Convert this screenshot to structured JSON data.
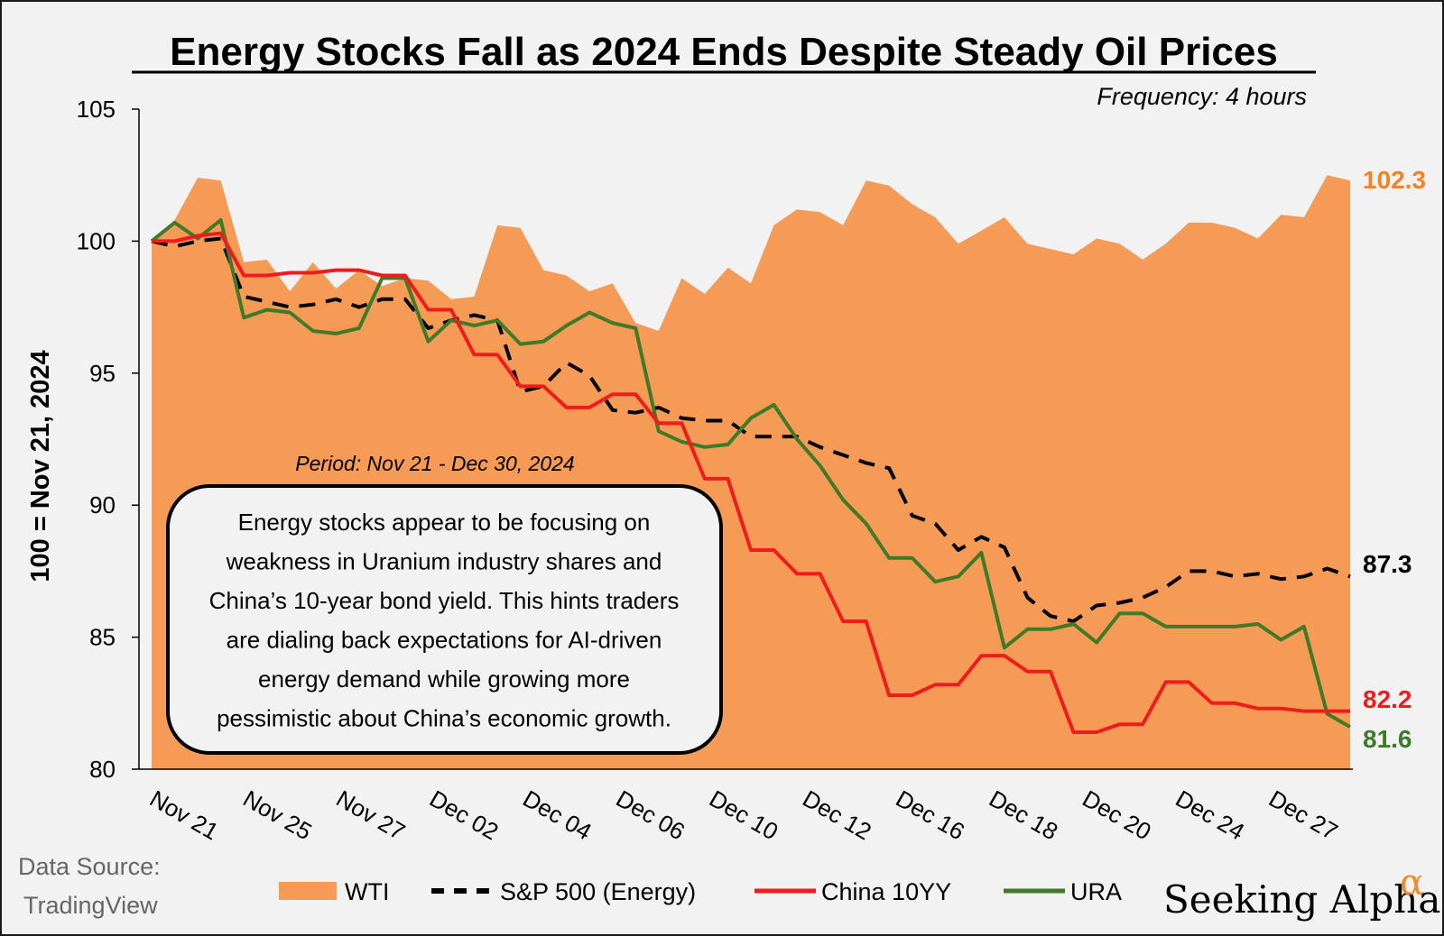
{
  "title": "Energy Stocks Fall as 2024 Ends Despite Steady Oil Prices",
  "subtitle": "Frequency: 4 hours",
  "period_note": "Period: Nov 21 - Dec 30, 2024",
  "callout_lines": [
    "Energy stocks appear to be focusing on",
    "weakness in Uranium industry shares and",
    "China’s 10-year bond yield. This hints traders",
    "are dialing back expectations for AI-driven",
    "energy demand while growing more",
    "pessimistic about China’s economic growth."
  ],
  "source": {
    "line1": "Data Source:",
    "line2": "TradingView"
  },
  "brand": {
    "name": "Seeking Alpha",
    "symbol": "α"
  },
  "colors": {
    "wti": "#f59b55",
    "sp500": "#000000",
    "china": "#ee1c1c",
    "ura": "#3f7a28",
    "wti_label": "#f58220",
    "ura_label": "#3f7a28"
  },
  "chart_data": {
    "type": "area",
    "ylabel": "100 = Nov 21, 2024",
    "ylim": [
      80,
      105
    ],
    "yticks": [
      80,
      85,
      90,
      95,
      100,
      105
    ],
    "xticks": [
      "Nov 21",
      "Nov 25",
      "Nov 27",
      "Dec 02",
      "Dec 04",
      "Dec 06",
      "Dec 10",
      "Dec 12",
      "Dec 16",
      "Dec 18",
      "Dec 20",
      "Dec 24",
      "Dec 27"
    ],
    "x_range": [
      0,
      52
    ],
    "legend_position": "bottom",
    "series": [
      {
        "name": "WTI",
        "style": "area",
        "end_label": "102.3",
        "points": [
          [
            0,
            100
          ],
          [
            1,
            100.8
          ],
          [
            2,
            102.4
          ],
          [
            3,
            102.3
          ],
          [
            4,
            99.2
          ],
          [
            5,
            99.3
          ],
          [
            6,
            98.1
          ],
          [
            7,
            99.2
          ],
          [
            8,
            98.2
          ],
          [
            9,
            98.9
          ],
          [
            10,
            98.3
          ],
          [
            11,
            98.6
          ],
          [
            12,
            98.5
          ],
          [
            13,
            97.8
          ],
          [
            14,
            97.9
          ],
          [
            15,
            100.6
          ],
          [
            16,
            100.5
          ],
          [
            17,
            98.9
          ],
          [
            18,
            98.7
          ],
          [
            19,
            98.1
          ],
          [
            20,
            98.4
          ],
          [
            21,
            96.9
          ],
          [
            22,
            96.6
          ],
          [
            23,
            98.6
          ],
          [
            24,
            98.0
          ],
          [
            25,
            99.0
          ],
          [
            26,
            98.4
          ],
          [
            27,
            100.6
          ],
          [
            28,
            101.2
          ],
          [
            29,
            101.1
          ],
          [
            30,
            100.6
          ],
          [
            31,
            102.3
          ],
          [
            32,
            102.1
          ],
          [
            33,
            101.4
          ],
          [
            34,
            100.9
          ],
          [
            35,
            99.9
          ],
          [
            36,
            100.4
          ],
          [
            37,
            100.9
          ],
          [
            38,
            99.9
          ],
          [
            39,
            99.7
          ],
          [
            40,
            99.5
          ],
          [
            41,
            100.1
          ],
          [
            42,
            99.9
          ],
          [
            43,
            99.3
          ],
          [
            44,
            99.9
          ],
          [
            45,
            100.7
          ],
          [
            46,
            100.7
          ],
          [
            47,
            100.5
          ],
          [
            48,
            100.1
          ],
          [
            49,
            101.0
          ],
          [
            50,
            100.9
          ],
          [
            51,
            102.5
          ],
          [
            52,
            102.3
          ]
        ]
      },
      {
        "name": "S&P 500 (Energy)",
        "style": "dashed",
        "end_label": "87.3",
        "points": [
          [
            0,
            100
          ],
          [
            1,
            99.8
          ],
          [
            2,
            100.0
          ],
          [
            3,
            100.1
          ],
          [
            4,
            97.9
          ],
          [
            5,
            97.7
          ],
          [
            6,
            97.5
          ],
          [
            7,
            97.6
          ],
          [
            8,
            97.8
          ],
          [
            9,
            97.5
          ],
          [
            10,
            97.8
          ],
          [
            11,
            97.8
          ],
          [
            12,
            96.7
          ],
          [
            13,
            97.0
          ],
          [
            14,
            97.2
          ],
          [
            15,
            97.0
          ],
          [
            16,
            94.3
          ],
          [
            17,
            94.5
          ],
          [
            18,
            95.4
          ],
          [
            19,
            94.9
          ],
          [
            20,
            93.6
          ],
          [
            21,
            93.5
          ],
          [
            22,
            93.7
          ],
          [
            23,
            93.3
          ],
          [
            24,
            93.2
          ],
          [
            25,
            93.2
          ],
          [
            26,
            92.6
          ],
          [
            27,
            92.6
          ],
          [
            28,
            92.6
          ],
          [
            29,
            92.2
          ],
          [
            30,
            91.9
          ],
          [
            31,
            91.6
          ],
          [
            32,
            91.4
          ],
          [
            33,
            89.6
          ],
          [
            34,
            89.3
          ],
          [
            35,
            88.3
          ],
          [
            36,
            88.8
          ],
          [
            37,
            88.4
          ],
          [
            38,
            86.5
          ],
          [
            39,
            85.8
          ],
          [
            40,
            85.6
          ],
          [
            41,
            86.2
          ],
          [
            42,
            86.3
          ],
          [
            43,
            86.5
          ],
          [
            44,
            86.9
          ],
          [
            45,
            87.5
          ],
          [
            46,
            87.5
          ],
          [
            47,
            87.3
          ],
          [
            48,
            87.4
          ],
          [
            49,
            87.2
          ],
          [
            50,
            87.3
          ],
          [
            51,
            87.6
          ],
          [
            52,
            87.3
          ]
        ]
      },
      {
        "name": "China 10YY",
        "style": "solid",
        "end_label": "82.2",
        "points": [
          [
            0,
            100
          ],
          [
            1,
            100
          ],
          [
            2,
            100.2
          ],
          [
            3,
            100.3
          ],
          [
            4,
            98.7
          ],
          [
            5,
            98.7
          ],
          [
            6,
            98.8
          ],
          [
            7,
            98.8
          ],
          [
            8,
            98.9
          ],
          [
            9,
            98.9
          ],
          [
            10,
            98.7
          ],
          [
            11,
            98.7
          ],
          [
            12,
            97.4
          ],
          [
            13,
            97.4
          ],
          [
            14,
            95.7
          ],
          [
            15,
            95.7
          ],
          [
            16,
            94.5
          ],
          [
            17,
            94.5
          ],
          [
            18,
            93.7
          ],
          [
            19,
            93.7
          ],
          [
            20,
            94.2
          ],
          [
            21,
            94.2
          ],
          [
            22,
            93.1
          ],
          [
            23,
            93.1
          ],
          [
            24,
            91.0
          ],
          [
            25,
            91.0
          ],
          [
            26,
            88.3
          ],
          [
            27,
            88.3
          ],
          [
            28,
            87.4
          ],
          [
            29,
            87.4
          ],
          [
            30,
            85.6
          ],
          [
            31,
            85.6
          ],
          [
            32,
            82.8
          ],
          [
            33,
            82.8
          ],
          [
            34,
            83.2
          ],
          [
            35,
            83.2
          ],
          [
            36,
            84.3
          ],
          [
            37,
            84.3
          ],
          [
            38,
            83.7
          ],
          [
            39,
            83.7
          ],
          [
            40,
            81.4
          ],
          [
            41,
            81.4
          ],
          [
            42,
            81.7
          ],
          [
            43,
            81.7
          ],
          [
            44,
            83.3
          ],
          [
            45,
            83.3
          ],
          [
            46,
            82.5
          ],
          [
            47,
            82.5
          ],
          [
            48,
            82.3
          ],
          [
            49,
            82.3
          ],
          [
            50,
            82.2
          ],
          [
            51,
            82.2
          ],
          [
            52,
            82.2
          ]
        ]
      },
      {
        "name": "URA",
        "style": "solid",
        "end_label": "81.6",
        "points": [
          [
            0,
            100
          ],
          [
            1,
            100.7
          ],
          [
            2,
            100.1
          ],
          [
            3,
            100.8
          ],
          [
            4,
            97.1
          ],
          [
            5,
            97.4
          ],
          [
            6,
            97.3
          ],
          [
            7,
            96.6
          ],
          [
            8,
            96.5
          ],
          [
            9,
            96.7
          ],
          [
            10,
            98.6
          ],
          [
            11,
            98.6
          ],
          [
            12,
            96.2
          ],
          [
            13,
            97.0
          ],
          [
            14,
            96.8
          ],
          [
            15,
            97.0
          ],
          [
            16,
            96.1
          ],
          [
            17,
            96.2
          ],
          [
            18,
            96.8
          ],
          [
            19,
            97.3
          ],
          [
            20,
            96.9
          ],
          [
            21,
            96.7
          ],
          [
            22,
            92.8
          ],
          [
            23,
            92.4
          ],
          [
            24,
            92.2
          ],
          [
            25,
            92.3
          ],
          [
            26,
            93.3
          ],
          [
            27,
            93.8
          ],
          [
            28,
            92.5
          ],
          [
            29,
            91.5
          ],
          [
            30,
            90.2
          ],
          [
            31,
            89.3
          ],
          [
            32,
            88.0
          ],
          [
            33,
            88.0
          ],
          [
            34,
            87.1
          ],
          [
            35,
            87.3
          ],
          [
            36,
            88.2
          ],
          [
            37,
            84.6
          ],
          [
            38,
            85.3
          ],
          [
            39,
            85.3
          ],
          [
            40,
            85.5
          ],
          [
            41,
            84.8
          ],
          [
            42,
            85.9
          ],
          [
            43,
            85.9
          ],
          [
            44,
            85.4
          ],
          [
            45,
            85.4
          ],
          [
            46,
            85.4
          ],
          [
            47,
            85.4
          ],
          [
            48,
            85.5
          ],
          [
            49,
            84.9
          ],
          [
            50,
            85.4
          ],
          [
            51,
            82.1
          ],
          [
            52,
            81.6
          ]
        ]
      }
    ]
  }
}
